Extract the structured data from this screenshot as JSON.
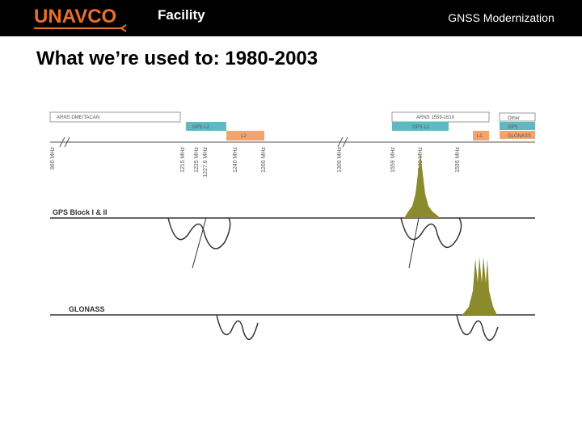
{
  "header": {
    "logo": "UNAVCO",
    "facility": "Facility",
    "section": "GNSS Modernization"
  },
  "slide": {
    "title": "What we’re used to: 1980-2003"
  },
  "diagram": {
    "bands": [
      "ARNS DME/TACAN",
      "GPS L2",
      "L2",
      "ARNS 1559-1610",
      "GPS L1",
      "L1"
    ],
    "legend": [
      "Other",
      "GPS",
      "GLONASS"
    ],
    "frequencies": [
      "960 MHz",
      "1215 MHz",
      "1225 MHz",
      "1227.6 MHz",
      "1240 MHz",
      "1260 MHz",
      "1300 MHz",
      "1559 MHz",
      "1575.42 MHz",
      "1595 MHz"
    ],
    "rows": [
      "GPS Block I & II",
      "GLONASS"
    ]
  }
}
